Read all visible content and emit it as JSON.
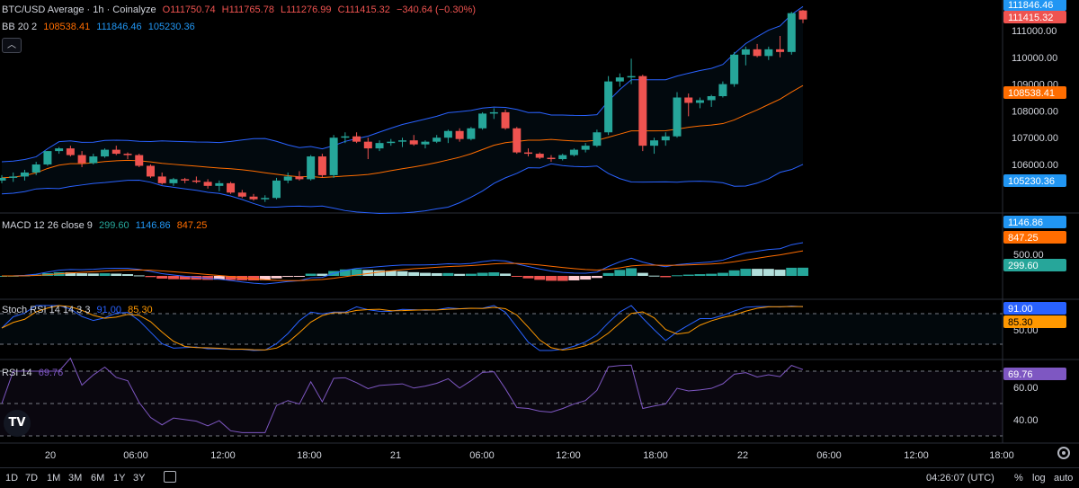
{
  "title_bar": {
    "symbol": "BTC/USD Average · 1h · Coinalyze",
    "open": "O111750.74",
    "high": "H111765.78",
    "low": "L111276.99",
    "close": "C111415.32",
    "change": "−340.64 (−0.30%)"
  },
  "legends": {
    "bb": {
      "label": "BB 20 2",
      "v1": "108538.41",
      "v2": "111846.46",
      "v3": "105230.36"
    },
    "macd": {
      "label": "MACD 12 26 close 9",
      "v1": "299.60",
      "v2": "1146.86",
      "v3": "847.25"
    },
    "stoch": {
      "label": "Stoch RSI 14 14 3 3",
      "v1": "91.00",
      "v2": "85.30"
    },
    "rsi": {
      "label": "RSI 14",
      "v1": "69.76"
    }
  },
  "collapse_icon": "chevron-up-icon",
  "logo": "TV",
  "bottom_bar": {
    "ranges": [
      "1D",
      "7D",
      "1M",
      "3M",
      "6M",
      "1Y",
      "3Y"
    ],
    "time": "04:26:07 (UTC)",
    "percent": "%",
    "log": "log",
    "auto": "auto"
  },
  "colors": {
    "up": "#26a69a",
    "down": "#ef5350",
    "bb_band": "#2962ff",
    "bb_basis": "#ff6d00",
    "macd": "#2962ff",
    "signal": "#ff6d00",
    "stoch_k": "#2962ff",
    "stoch_d": "#ff9800",
    "rsi": "#7e57c2"
  },
  "chart_data": {
    "type": "candlestick",
    "x_ticks": [
      "20",
      "06:00",
      "12:00",
      "18:00",
      "21",
      "06:00",
      "12:00",
      "18:00",
      "22",
      "06:00",
      "12:00",
      "18:00"
    ],
    "price_axis_ticks": [
      111000,
      110000,
      109000,
      108000,
      107000,
      106000
    ],
    "price_tick_labels": [
      "111000.00",
      "110000.00",
      "109000.00",
      "108000.00",
      "107000.00",
      "106000.00"
    ],
    "price_labels": {
      "bb_upper": "111846.46",
      "last": "111415.32",
      "bb_basis": "108538.41",
      "bb_lower": "105230.36"
    },
    "candles": [
      [
        105400,
        105600,
        105300,
        105500
      ],
      [
        105500,
        105700,
        105350,
        105550
      ],
      [
        105550,
        105800,
        105400,
        105700
      ],
      [
        105700,
        106100,
        105600,
        106000
      ],
      [
        106000,
        106500,
        105950,
        106500
      ],
      [
        106500,
        106650,
        106400,
        106600
      ],
      [
        106600,
        106700,
        106300,
        106350
      ],
      [
        106350,
        106500,
        105900,
        106050
      ],
      [
        106050,
        106400,
        106000,
        106300
      ],
      [
        106300,
        106600,
        106250,
        106550
      ],
      [
        106550,
        106700,
        106350,
        106400
      ],
      [
        106400,
        106450,
        106200,
        106350
      ],
      [
        106350,
        106400,
        105900,
        105950
      ],
      [
        105950,
        106000,
        105500,
        105550
      ],
      [
        105550,
        105700,
        105250,
        105300
      ],
      [
        105300,
        105500,
        105200,
        105450
      ],
      [
        105450,
        105500,
        105300,
        105400
      ],
      [
        105400,
        105550,
        105300,
        105350
      ],
      [
        105350,
        105450,
        105100,
        105200
      ],
      [
        105200,
        105400,
        105000,
        105300
      ],
      [
        105300,
        105350,
        104900,
        104950
      ],
      [
        104950,
        105050,
        104750,
        104800
      ],
      [
        104800,
        104900,
        104650,
        104700
      ],
      [
        104700,
        104850,
        104600,
        104750
      ],
      [
        104750,
        105500,
        104700,
        105400
      ],
      [
        105400,
        105700,
        105300,
        105550
      ],
      [
        105550,
        105750,
        105400,
        105450
      ],
      [
        105450,
        106350,
        105400,
        106300
      ],
      [
        106300,
        106400,
        105500,
        105600
      ],
      [
        105600,
        107100,
        105500,
        107000
      ],
      [
        107000,
        107200,
        106800,
        107050
      ],
      [
        107050,
        107200,
        106800,
        106850
      ],
      [
        106850,
        107000,
        106200,
        106600
      ],
      [
        106600,
        106900,
        106500,
        106800
      ],
      [
        106800,
        106950,
        106700,
        106850
      ],
      [
        106850,
        107000,
        106650,
        106900
      ],
      [
        106900,
        107100,
        106700,
        106750
      ],
      [
        106750,
        106900,
        106600,
        106850
      ],
      [
        106850,
        107100,
        106800,
        107000
      ],
      [
        107000,
        107300,
        106800,
        107250
      ],
      [
        107250,
        107350,
        106850,
        106950
      ],
      [
        106950,
        107400,
        106900,
        107350
      ],
      [
        107350,
        107950,
        107300,
        107900
      ],
      [
        107900,
        108100,
        107700,
        107950
      ],
      [
        107950,
        108050,
        107300,
        107350
      ],
      [
        107350,
        107400,
        106400,
        106450
      ],
      [
        106450,
        106600,
        106300,
        106400
      ],
      [
        106400,
        106450,
        106200,
        106250
      ],
      [
        106250,
        106350,
        106100,
        106200
      ],
      [
        106200,
        106400,
        106150,
        106350
      ],
      [
        106350,
        106600,
        106300,
        106550
      ],
      [
        106550,
        106800,
        106450,
        106700
      ],
      [
        106700,
        107300,
        106650,
        107200
      ],
      [
        107200,
        109300,
        107100,
        109100
      ],
      [
        109100,
        109400,
        108900,
        109250
      ],
      [
        109250,
        109950,
        109000,
        109300
      ],
      [
        109300,
        109350,
        106500,
        106700
      ],
      [
        106700,
        107000,
        106400,
        106900
      ],
      [
        106900,
        107200,
        106700,
        107050
      ],
      [
        107050,
        108700,
        107000,
        108500
      ],
      [
        108500,
        108650,
        107800,
        108300
      ],
      [
        108300,
        108500,
        108100,
        108400
      ],
      [
        108400,
        108600,
        108150,
        108550
      ],
      [
        108550,
        109100,
        108500,
        109000
      ],
      [
        109000,
        110200,
        108900,
        110100
      ],
      [
        110100,
        110400,
        109700,
        110300
      ],
      [
        110300,
        110500,
        110000,
        110050
      ],
      [
        110050,
        110400,
        109900,
        110300
      ],
      [
        110300,
        110800,
        110000,
        110200
      ],
      [
        110200,
        111700,
        110100,
        111650
      ],
      [
        111750,
        111766,
        111277,
        111415
      ]
    ],
    "macd_axis_ticks": [
      500
    ],
    "macd_tick_labels": [
      "500.00"
    ],
    "macd_labels": {
      "macd": "1146.86",
      "signal": "847.25",
      "hist": "299.60"
    },
    "stoch_axis_ticks": [
      50
    ],
    "stoch_tick_labels": [
      "50.00"
    ],
    "stoch_labels": {
      "k": "91.00",
      "d": "85.30"
    },
    "rsi_axis_ticks": [
      60,
      40
    ],
    "rsi_tick_labels": [
      "60.00",
      "40.00"
    ],
    "rsi_labels": {
      "rsi": "69.76"
    }
  }
}
